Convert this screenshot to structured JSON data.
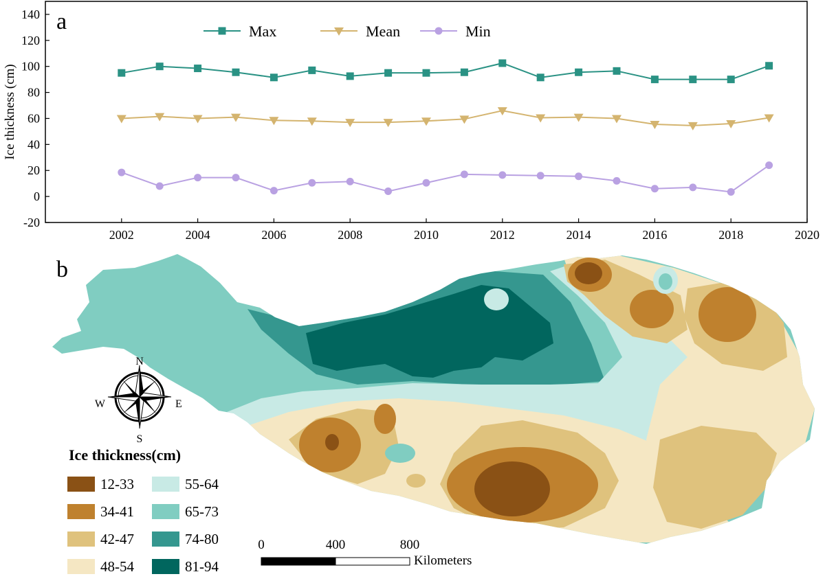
{
  "chart_data": [
    {
      "panel": "a",
      "type": "line",
      "title": "",
      "xlabel": "",
      "ylabel": "Ice thickness (cm)",
      "xlim": [
        2000,
        2020
      ],
      "ylim": [
        -20,
        150
      ],
      "xticks": [
        2002,
        2004,
        2006,
        2008,
        2010,
        2012,
        2014,
        2016,
        2018,
        2020
      ],
      "yticks": [
        -20,
        0,
        20,
        40,
        60,
        80,
        100,
        120,
        140
      ],
      "legend_position": "top-left",
      "x": [
        2002,
        2003,
        2004,
        2005,
        2006,
        2007,
        2008,
        2009,
        2010,
        2011,
        2012,
        2013,
        2014,
        2015,
        2016,
        2017,
        2018,
        2019
      ],
      "series": [
        {
          "name": "Max",
          "marker": "square",
          "color": "#2a9284",
          "values": [
            95,
            100,
            98.5,
            95.5,
            91.5,
            97,
            92.5,
            95,
            95,
            95.5,
            102.5,
            91.5,
            95.5,
            96.5,
            90,
            90,
            90,
            100.5
          ]
        },
        {
          "name": "Mean",
          "marker": "triangle-down",
          "color": "#d4b46f",
          "values": [
            60,
            61.5,
            60,
            61,
            58.5,
            58,
            57,
            57,
            58,
            59.5,
            66,
            60.5,
            61,
            60,
            55.5,
            54.5,
            56,
            60.5
          ]
        },
        {
          "name": "Min",
          "marker": "circle",
          "color": "#b9a1e2",
          "values": [
            18.5,
            8,
            14.5,
            14.5,
            4.5,
            10.5,
            11.5,
            4,
            10.5,
            17,
            16.5,
            16,
            15.5,
            12,
            6,
            7,
            3.5,
            24
          ]
        }
      ]
    },
    {
      "panel": "b",
      "type": "map",
      "legend_title": "Ice thickness(cm)",
      "legend": [
        {
          "label": "12-33",
          "color": "#8a5115"
        },
        {
          "label": "34-41",
          "color": "#bf812e"
        },
        {
          "label": "42-47",
          "color": "#dfc27d"
        },
        {
          "label": "48-54",
          "color": "#f5e7c3"
        },
        {
          "label": "55-64",
          "color": "#c8eae5"
        },
        {
          "label": "65-73",
          "color": "#80cdc1"
        },
        {
          "label": "74-80",
          "color": "#35978f"
        },
        {
          "label": "81-94",
          "color": "#01665e"
        }
      ],
      "compass": {
        "n": "N",
        "s": "S",
        "e": "E",
        "w": "W"
      },
      "scale_bar": {
        "ticks": [
          "0",
          "400",
          "800"
        ],
        "unit": "Kilometers"
      }
    }
  ],
  "labels": {
    "panel_a": "a",
    "panel_b": "b"
  }
}
